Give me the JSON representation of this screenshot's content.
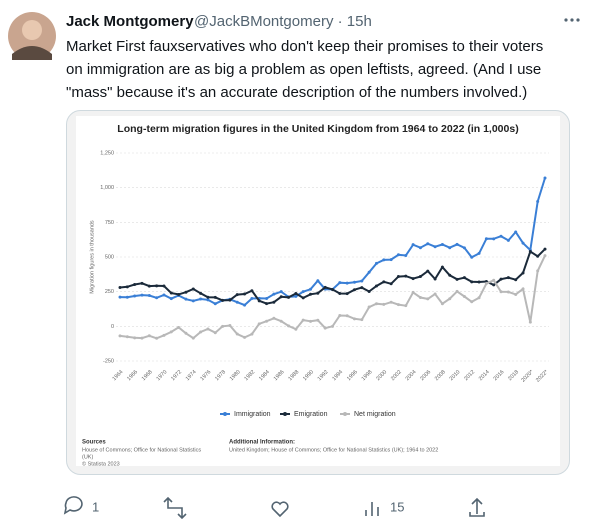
{
  "tweet": {
    "name": "Jack Montgomery",
    "handle": "@JackBMontgomery · 15h",
    "text": [
      "Market First fauxservatives who don't keep their promises to their voters",
      "on immigration are as big a problem as open leftists, agreed. (And I use",
      "\"mass\" because it's an accurate description of the numbers involved.)"
    ]
  },
  "chart_data": {
    "type": "line",
    "title": "Long-term migration figures in the United Kingdom from 1964 to 2022 (in 1,000s)",
    "y_label": "Migration figures in thousands",
    "categories": [
      "1964",
      null,
      "1966",
      null,
      "1968",
      null,
      "1970",
      null,
      "1972",
      null,
      "1974",
      null,
      "1976",
      null,
      "1978",
      null,
      "1980",
      null,
      "1982",
      null,
      "1984",
      null,
      "1986",
      null,
      "1988",
      null,
      "1990",
      null,
      "1992",
      null,
      "1994",
      null,
      "1996",
      null,
      "1998",
      null,
      "2000",
      null,
      "2002",
      null,
      "2004",
      null,
      "2006",
      null,
      "2008",
      null,
      "2010",
      null,
      "2012",
      null,
      "2014",
      null,
      "2016",
      null,
      "2018",
      null,
      "2020*",
      null,
      "2022*"
    ],
    "series": [
      {
        "name": "Immigration",
        "color": "#3a7fd6",
        "values": [
          211,
          210,
          219,
          225,
          222,
          206,
          226,
          200,
          222,
          196,
          184,
          197,
          191,
          163,
          187,
          195,
          174,
          153,
          201,
          202,
          201,
          232,
          250,
          212,
          216,
          250,
          267,
          329,
          268,
          266,
          315,
          312,
          318,
          327,
          390,
          454,
          479,
          481,
          516,
          511,
          589,
          567,
          596,
          574,
          590,
          567,
          591,
          566,
          498,
          526,
          632,
          631,
          650,
          620,
          680,
          600,
          550,
          900,
          1070
        ]
      },
      {
        "name": "Emigration",
        "color": "#1b2a3a",
        "values": [
          280,
          285,
          302,
          310,
          290,
          292,
          291,
          240,
          230,
          246,
          269,
          238,
          210,
          209,
          187,
          189,
          229,
          233,
          257,
          184,
          164,
          174,
          213,
          209,
          237,
          205,
          231,
          239,
          281,
          266,
          237,
          236,
          264,
          279,
          251,
          291,
          321,
          307,
          359,
          362,
          344,
          359,
          398,
          341,
          427,
          368,
          339,
          351,
          321,
          320,
          323,
          299,
          340,
          351,
          336,
          385,
          540,
          505,
          557
        ]
      },
      {
        "name": "Net migration",
        "color": "#b8b8b8",
        "values": [
          -69,
          -75,
          -83,
          -85,
          -68,
          -86,
          -65,
          -40,
          -8,
          -50,
          -85,
          -41,
          -19,
          -46,
          0,
          6,
          -55,
          -80,
          -56,
          18,
          37,
          58,
          37,
          3,
          -21,
          45,
          36,
          44,
          -13,
          0,
          78,
          76,
          54,
          48,
          139,
          163,
          158,
          174,
          157,
          149,
          245,
          208,
          198,
          233,
          163,
          199,
          252,
          215,
          177,
          206,
          309,
          332,
          249,
          248,
          230,
          270,
          30,
          400,
          510
        ]
      }
    ],
    "ylim": [
      -250,
      1250
    ],
    "yticks": [
      -250,
      0,
      250,
      500,
      750,
      {
        "value": 1000,
        "label": "1,000"
      },
      {
        "value": 1250,
        "label": "1,250"
      }
    ],
    "grid": true,
    "legend": "bottom",
    "sources_title": "Sources",
    "sources": [
      "House of Commons; Office for National Statistics",
      "(UK)",
      "© Statista 2023"
    ],
    "info_title": "Additional Information:",
    "info": "United Kingdom; House of Commons; Office for National Statistics (UK); 1964 to 2022"
  },
  "actions": {
    "replies": 1,
    "views": 15
  }
}
